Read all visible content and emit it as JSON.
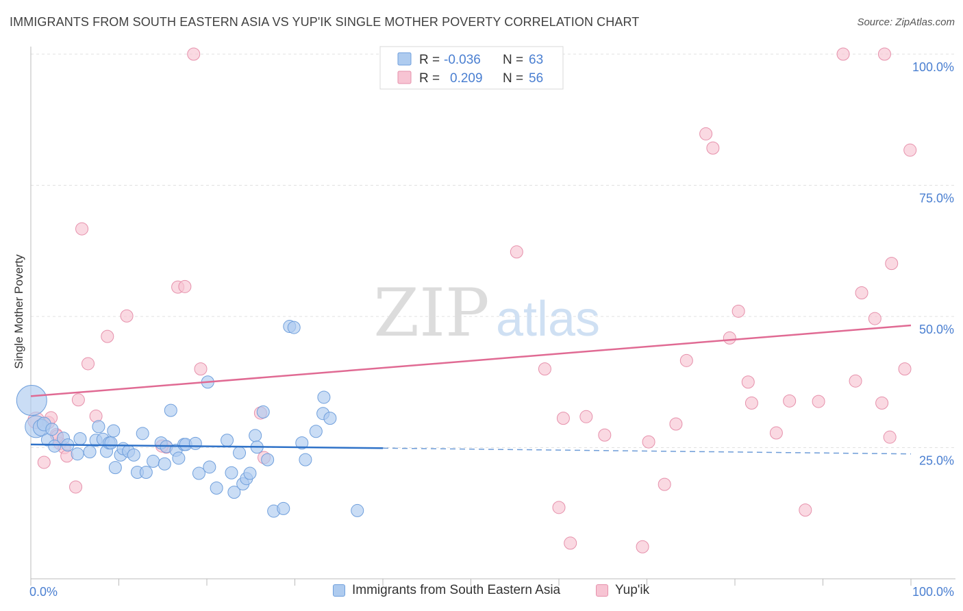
{
  "header": {
    "title": "IMMIGRANTS FROM SOUTH EASTERN ASIA VS YUP'IK SINGLE MOTHER POVERTY CORRELATION CHART",
    "source": "Source: ZipAtlas.com"
  },
  "watermark": {
    "zip": "ZIP",
    "atlas": "atlas"
  },
  "stats_legend": {
    "rows": [
      {
        "r_label": "R =",
        "r_value": "-0.036",
        "n_label": "N =",
        "n_value": "63"
      },
      {
        "r_label": "R =",
        "r_value": "0.209",
        "n_label": "N =",
        "n_value": "56"
      }
    ]
  },
  "colors": {
    "blue_fill": "#aecbef",
    "blue_stroke": "#6f9fdc",
    "blue_line": "#2f72c8",
    "pink_fill": "#f7c4d3",
    "pink_stroke": "#e690ab",
    "pink_line": "#e06a93",
    "tick_label": "#4a7fd1",
    "grid": "#e0e0e0",
    "axis": "#bbbbbb"
  },
  "chart_data": {
    "type": "scatter",
    "title": "IMMIGRANTS FROM SOUTH EASTERN ASIA VS YUP'IK SINGLE MOTHER POVERTY CORRELATION CHART",
    "xlabel": "",
    "ylabel": "Single Mother Poverty",
    "xlim": [
      0,
      100
    ],
    "ylim": [
      0,
      100
    ],
    "x_tick_labels": [
      "0.0%",
      "100.0%"
    ],
    "y_tick_values": [
      25,
      50,
      75,
      100
    ],
    "y_tick_labels": [
      "25.0%",
      "50.0%",
      "75.0%",
      "100.0%"
    ],
    "grid": true,
    "legend": "bottom-center",
    "series": [
      {
        "name": "Immigrants from South Eastern Asia",
        "r": -0.036,
        "n": 63,
        "trend": {
          "x0": 0,
          "y0": 25.6,
          "x1": 40,
          "y1": 24.9,
          "dashed_to_x": 100,
          "dashed_to_y": 23.8
        },
        "points": [
          [
            0.1,
            34,
            22
          ],
          [
            0.6,
            29,
            16
          ],
          [
            1.2,
            28.8,
            12
          ],
          [
            1.5,
            29.5,
            10
          ],
          [
            1.9,
            26.5,
            9
          ],
          [
            2.4,
            28.5,
            9
          ],
          [
            2.7,
            25.3,
            9
          ],
          [
            3.7,
            26.8,
            9
          ],
          [
            4.2,
            25.5,
            9
          ],
          [
            5.3,
            23.8,
            9
          ],
          [
            5.6,
            26.7,
            9
          ],
          [
            6.7,
            24.2,
            9
          ],
          [
            7.4,
            26.4,
            9
          ],
          [
            7.7,
            29,
            9
          ],
          [
            8.2,
            26.6,
            9
          ],
          [
            8.6,
            24.3,
            9
          ],
          [
            8.9,
            25.9,
            9
          ],
          [
            9.1,
            25.9,
            9
          ],
          [
            9.4,
            28.2,
            9
          ],
          [
            9.6,
            21.2,
            9
          ],
          [
            10.2,
            23.6,
            9
          ],
          [
            10.5,
            24.8,
            9
          ],
          [
            11.1,
            24.3,
            9
          ],
          [
            11.7,
            23.6,
            9
          ],
          [
            12.1,
            20.3,
            9
          ],
          [
            12.7,
            27.7,
            9
          ],
          [
            13.1,
            20.3,
            9
          ],
          [
            13.9,
            22.4,
            9
          ],
          [
            14.8,
            25.9,
            9
          ],
          [
            15.2,
            21.9,
            9
          ],
          [
            15.4,
            25.2,
            9
          ],
          [
            15.9,
            32.1,
            9
          ],
          [
            16.5,
            24.5,
            9
          ],
          [
            16.8,
            23.0,
            9
          ],
          [
            17.4,
            25.6,
            9
          ],
          [
            17.6,
            25.6,
            9
          ],
          [
            18.7,
            25.8,
            9
          ],
          [
            19.1,
            20.1,
            9
          ],
          [
            20.1,
            37.5,
            9
          ],
          [
            20.3,
            21.3,
            9
          ],
          [
            21.1,
            17.3,
            9
          ],
          [
            22.3,
            26.4,
            9
          ],
          [
            22.8,
            20.2,
            9
          ],
          [
            23.1,
            16.5,
            9
          ],
          [
            23.7,
            24.0,
            9
          ],
          [
            24.1,
            18.1,
            9
          ],
          [
            24.5,
            19.1,
            9
          ],
          [
            24.9,
            20.1,
            9
          ],
          [
            25.5,
            27.3,
            9
          ],
          [
            25.7,
            25.1,
            9
          ],
          [
            26.4,
            31.8,
            9
          ],
          [
            26.9,
            22.7,
            9
          ],
          [
            27.6,
            12.9,
            9
          ],
          [
            28.7,
            13.4,
            9
          ],
          [
            29.4,
            48.1,
            9
          ],
          [
            29.9,
            47.9,
            9
          ],
          [
            30.8,
            25.9,
            9
          ],
          [
            31.2,
            22.7,
            9
          ],
          [
            33.2,
            31.5,
            9
          ],
          [
            33.3,
            34.6,
            9
          ],
          [
            32.4,
            28.1,
            9
          ],
          [
            34.0,
            30.6,
            9
          ],
          [
            37.1,
            13.0,
            9
          ]
        ]
      },
      {
        "name": "Yup'ik",
        "r": 0.209,
        "n": 56,
        "trend": {
          "x0": 0,
          "y0": 34.8,
          "x1": 100,
          "y1": 48.3
        },
        "points": [
          [
            0.6,
            30.2,
            12
          ],
          [
            1.5,
            22.2,
            9
          ],
          [
            2.0,
            29.8,
            9
          ],
          [
            2.3,
            30.7,
            9
          ],
          [
            2.9,
            27.5,
            9
          ],
          [
            3.3,
            25.8,
            9
          ],
          [
            3.8,
            25.0,
            9
          ],
          [
            4.1,
            23.4,
            9
          ],
          [
            5.1,
            17.5,
            9
          ],
          [
            5.4,
            34.1,
            9
          ],
          [
            5.8,
            66.7,
            9
          ],
          [
            6.5,
            41.0,
            9
          ],
          [
            7.4,
            31.0,
            9
          ],
          [
            8.7,
            46.2,
            9
          ],
          [
            10.9,
            50.1,
            9
          ],
          [
            15.4,
            25.1,
            9
          ],
          [
            16.7,
            55.6,
            9
          ],
          [
            17.5,
            55.7,
            9
          ],
          [
            18.5,
            100,
            9
          ],
          [
            19.3,
            40.0,
            9
          ],
          [
            26.1,
            31.6,
            9
          ],
          [
            26.5,
            23.1,
            9
          ],
          [
            55.2,
            62.3,
            9
          ],
          [
            58.4,
            40.0,
            9
          ],
          [
            60.0,
            13.6,
            9
          ],
          [
            60.5,
            30.6,
            9
          ],
          [
            61.3,
            6.8,
            9
          ],
          [
            63.1,
            30.9,
            9
          ],
          [
            65.2,
            27.4,
            9
          ],
          [
            69.5,
            6.1,
            9
          ],
          [
            70.2,
            26.1,
            9
          ],
          [
            72.0,
            18.0,
            9
          ],
          [
            73.3,
            29.5,
            9
          ],
          [
            74.5,
            41.6,
            9
          ],
          [
            76.7,
            84.8,
            9
          ],
          [
            77.5,
            82.1,
            9
          ],
          [
            79.4,
            45.9,
            9
          ],
          [
            80.4,
            51.0,
            9
          ],
          [
            81.5,
            37.5,
            9
          ],
          [
            81.9,
            33.5,
            9
          ],
          [
            84.7,
            27.8,
            9
          ],
          [
            86.2,
            33.9,
            9
          ],
          [
            88.0,
            13.1,
            9
          ],
          [
            89.5,
            33.8,
            9
          ],
          [
            92.3,
            100,
            9
          ],
          [
            93.7,
            37.7,
            9
          ],
          [
            94.4,
            54.5,
            9
          ],
          [
            95.9,
            49.6,
            9
          ],
          [
            96.7,
            33.5,
            9
          ],
          [
            97.0,
            100,
            9
          ],
          [
            97.6,
            27.0,
            9
          ],
          [
            97.8,
            60.1,
            9
          ],
          [
            99.3,
            40.0,
            9
          ],
          [
            99.9,
            81.7,
            9
          ],
          [
            3.0,
            27.2,
            9
          ],
          [
            14.9,
            25.3,
            9
          ]
        ]
      }
    ]
  }
}
